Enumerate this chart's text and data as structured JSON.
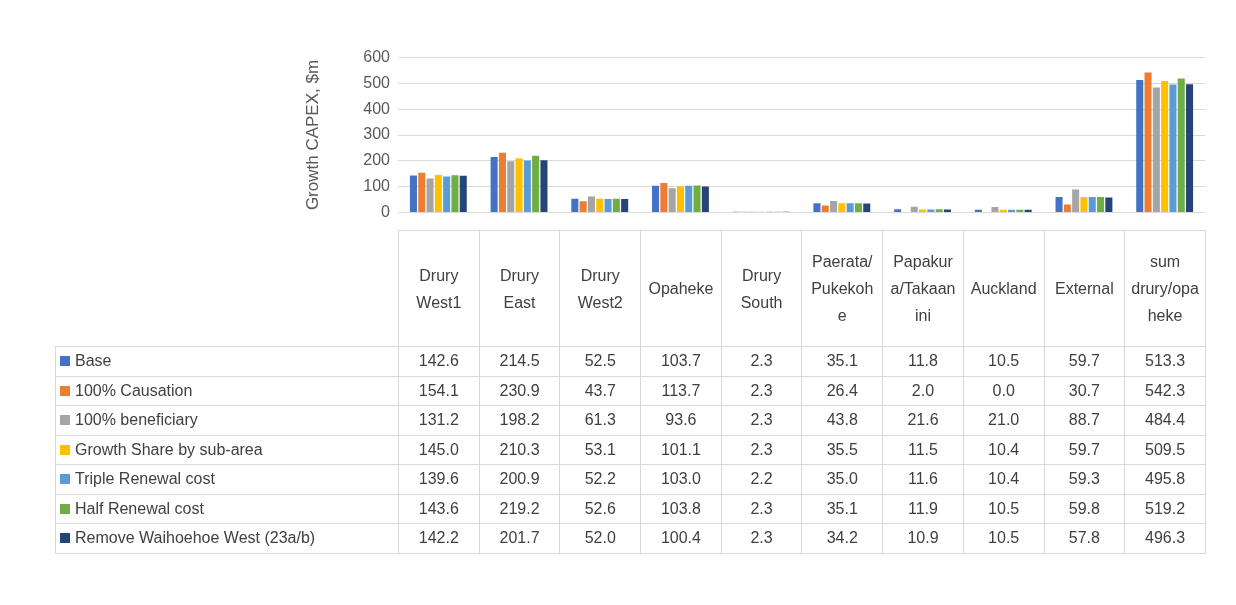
{
  "chart_data": {
    "type": "bar",
    "ylabel": "Growth CAPEX, $m",
    "categories": [
      "Drury West1",
      "Drury East",
      "Drury West2",
      "Opaheke",
      "Drury South",
      "Paerata/Pukekohe",
      "Papakura/Takaanini",
      "Auckland",
      "External",
      "sum drury/opaheke"
    ],
    "series": [
      {
        "name": "Base",
        "color": "#4472c4",
        "values": [
          142.6,
          214.5,
          52.5,
          103.7,
          2.3,
          35.1,
          11.8,
          10.5,
          59.7,
          513.3
        ],
        "value_labels": [
          "142.6",
          "214.5",
          "52.5",
          "103.7",
          "2.3",
          "35.1",
          "11.8",
          "10.5",
          "59.7",
          "513.3"
        ]
      },
      {
        "name": "100% Causation",
        "color": "#ed7d31",
        "values": [
          154.1,
          230.9,
          43.7,
          113.7,
          2.3,
          26.4,
          2.0,
          0.0,
          30.7,
          542.3
        ],
        "value_labels": [
          "154.1",
          "230.9",
          "43.7",
          "113.7",
          "2.3",
          "26.4",
          "2.0",
          "0.0",
          "30.7",
          "542.3"
        ]
      },
      {
        "name": "100% beneficiary",
        "color": "#a5a5a5",
        "values": [
          131.2,
          198.2,
          61.3,
          93.6,
          2.3,
          43.8,
          21.6,
          21.0,
          88.7,
          484.4
        ],
        "value_labels": [
          "131.2",
          "198.2",
          "61.3",
          "93.6",
          "2.3",
          "43.8",
          "21.6",
          "21.0",
          "88.7",
          "484.4"
        ]
      },
      {
        "name": "Growth Share by sub-area",
        "color": "#ffc000",
        "values": [
          145.0,
          210.3,
          53.1,
          101.1,
          2.3,
          35.5,
          11.5,
          10.4,
          59.7,
          509.5
        ],
        "value_labels": [
          "145.0",
          "210.3",
          "53.1",
          "101.1",
          "2.3",
          "35.5",
          "11.5",
          "10.4",
          "59.7",
          "509.5"
        ]
      },
      {
        "name": "Triple Renewal cost",
        "color": "#5b9bd5",
        "values": [
          139.6,
          200.9,
          52.2,
          103.0,
          2.2,
          35.0,
          11.6,
          10.4,
          59.3,
          495.8
        ],
        "value_labels": [
          "139.6",
          "200.9",
          "52.2",
          "103.0",
          "2.2",
          "35.0",
          "11.6",
          "10.4",
          "59.3",
          "495.8"
        ]
      },
      {
        "name": "Half Renewal cost",
        "color": "#70ad47",
        "values": [
          143.6,
          219.2,
          52.6,
          103.8,
          2.3,
          35.1,
          11.9,
          10.5,
          59.8,
          519.2
        ],
        "value_labels": [
          "143.6",
          "219.2",
          "52.6",
          "103.8",
          "2.3",
          "35.1",
          "11.9",
          "10.5",
          "59.8",
          "519.2"
        ]
      },
      {
        "name": "Remove Waihoehoe West (23a/b)",
        "color": "#264478",
        "values": [
          142.2,
          201.7,
          52.0,
          100.4,
          2.3,
          34.2,
          10.9,
          10.5,
          57.8,
          496.3
        ],
        "value_labels": [
          "142.2",
          "201.7",
          "52.0",
          "100.4",
          "2.3",
          "34.2",
          "10.9",
          "10.5",
          "57.8",
          "496.3"
        ]
      }
    ],
    "ylim": [
      0,
      600
    ],
    "yticks": [
      0,
      100,
      200,
      300,
      400,
      500,
      600
    ],
    "grid": "y",
    "legend": "bottom left"
  }
}
